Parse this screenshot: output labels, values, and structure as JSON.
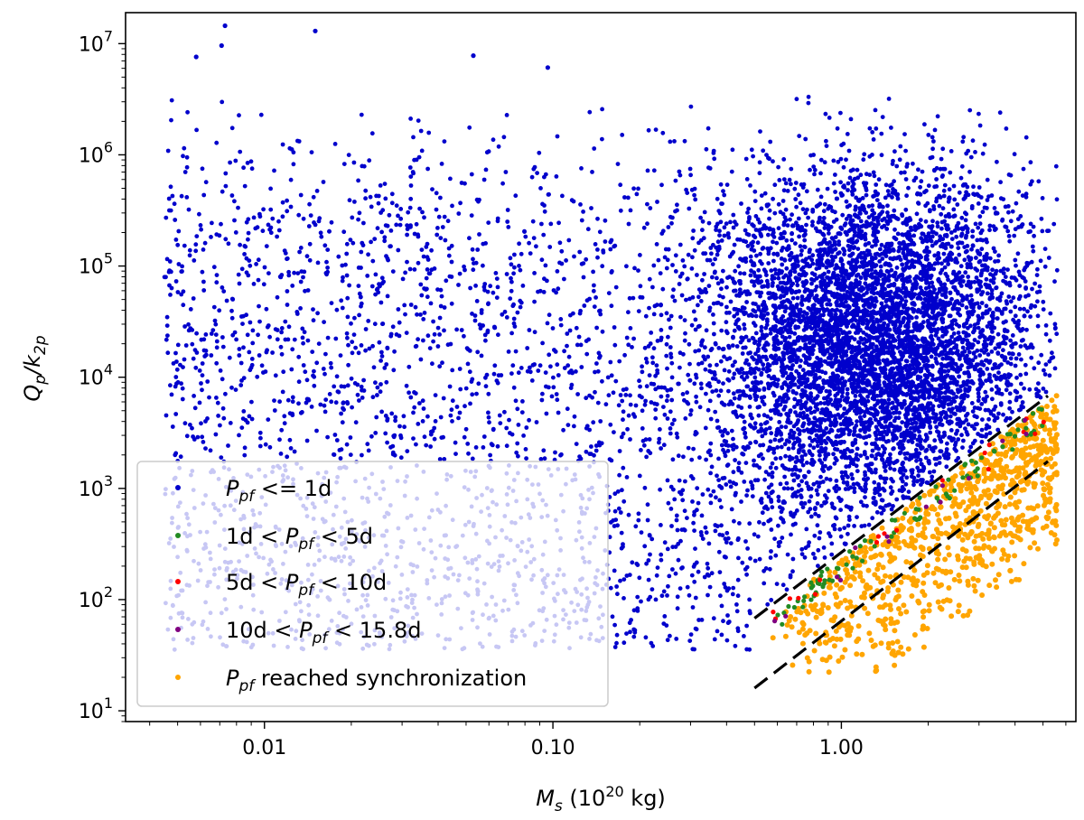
{
  "chart_data": {
    "type": "scatter",
    "xscale": "log",
    "yscale": "log",
    "xlim": [
      0.0033,
      6.5
    ],
    "ylim": [
      8,
      19000000
    ],
    "xlabel": {
      "main": "M",
      "sub": "s",
      "rest": " (10",
      "sup": "20",
      "unit": " kg)"
    },
    "ylabel": {
      "p1": "Q",
      "sub1": "p",
      "slash": "/k",
      "sub2": "2p"
    },
    "x_ticks": [
      {
        "value": 0.01,
        "label": "0.01"
      },
      {
        "value": 0.1,
        "label": "0.10"
      },
      {
        "value": 1.0,
        "label": "1.00"
      }
    ],
    "y_ticks": [
      {
        "value": 10,
        "base": "10",
        "exp": "1"
      },
      {
        "value": 100,
        "base": "10",
        "exp": "2"
      },
      {
        "value": 1000,
        "base": "10",
        "exp": "3"
      },
      {
        "value": 10000,
        "base": "10",
        "exp": "4"
      },
      {
        "value": 100000,
        "base": "10",
        "exp": "5"
      },
      {
        "value": 1000000,
        "base": "10",
        "exp": "6"
      },
      {
        "value": 10000000,
        "base": "10",
        "exp": "7"
      }
    ],
    "series": [
      {
        "name": "P_pf <= 1d",
        "label_parts": {
          "p": "P",
          "sub": "pf",
          "rest": " <= 1d"
        },
        "color": "#0000cc",
        "distribution": "broad cloud covering 0.0045-5.5 (x) by 40-1.4e7 (y), densest near x 0.5-5, y 1e3-3e5, bounded below by upper dashed line"
      },
      {
        "name": "1d < P_pf < 5d",
        "label_parts": {
          "pre": "1d < ",
          "p": "P",
          "sub": "pf",
          "rest": " < 5d"
        },
        "color": "#228b22",
        "distribution": "thin band just below upper dashed line, x 0.55-5"
      },
      {
        "name": "5d < P_pf < 10d",
        "label_parts": {
          "pre": "5d < ",
          "p": "P",
          "sub": "pf",
          "rest": " < 10d"
        },
        "color": "#ff0000",
        "distribution": "few points in band near upper dashed line"
      },
      {
        "name": "10d < P_pf < 15.8d",
        "label_parts": {
          "pre": "10d < ",
          "p": "P",
          "sub": "pf",
          "rest": " < 15.8d"
        },
        "color": "#800080",
        "distribution": "few points in band near upper dashed line"
      },
      {
        "name": "P_pf reached synchronization",
        "label_parts": {
          "p": "P",
          "sub": "pf",
          "rest": " reached synchronization"
        },
        "color": "#ffa500",
        "distribution": "cluster below the band, x 0.55-5.5, y 20-4000"
      }
    ],
    "lines": [
      {
        "name": "upper-dashed-line",
        "style": "dashed",
        "color": "#000000",
        "x": [
          0.5,
          5.2
        ],
        "y": [
          68,
          6800
        ]
      },
      {
        "name": "lower-dashed-line",
        "style": "dashed",
        "color": "#000000",
        "x": [
          0.5,
          5.2
        ],
        "y": [
          16,
          1750
        ]
      }
    ],
    "legend": {
      "position": "lower-left"
    }
  }
}
